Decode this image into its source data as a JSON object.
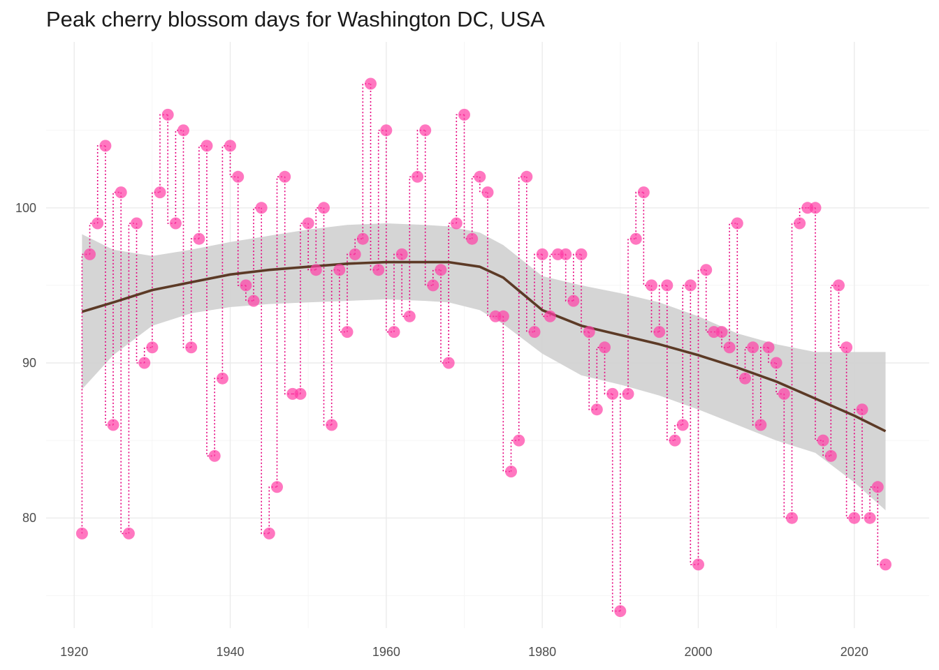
{
  "chart_data": {
    "type": "scatter",
    "title": "Peak cherry blossom days for Washington DC, USA",
    "xlabel": "",
    "ylabel": "",
    "xlim": [
      1916.2,
      1928.8
    ],
    "ylim": [
      72.9,
      110.7
    ],
    "x_ticks": [
      1920,
      1940,
      1960,
      1980,
      2000,
      2020
    ],
    "y_ticks": [
      80,
      90,
      100
    ],
    "grid": true,
    "colors": {
      "points": "#ff3da5",
      "segments": "#e6007e",
      "trend": "#5c3a26",
      "band": "#d3d3d3",
      "grid_major": "#ebebeb",
      "grid_minor": "#f5f5f5"
    },
    "series": [
      {
        "type": "points",
        "x": [
          1921,
          1922,
          1923,
          1924,
          1925,
          1926,
          1927,
          1928,
          1929,
          1930,
          1931,
          1932,
          1933,
          1934,
          1935,
          1936,
          1937,
          1938,
          1939,
          1940,
          1941,
          1942,
          1943,
          1944,
          1945,
          1946,
          1947,
          1948,
          1949,
          1950,
          1951,
          1952,
          1953,
          1954,
          1955,
          1956,
          1957,
          1958,
          1959,
          1960,
          1961,
          1962,
          1963,
          1964,
          1965,
          1966,
          1967,
          1968,
          1969,
          1970,
          1971,
          1972,
          1973,
          1974,
          1975,
          1976,
          1977,
          1978,
          1979,
          1980,
          1981,
          1982,
          1983,
          1984,
          1985,
          1986,
          1987,
          1988,
          1989,
          1990,
          1991,
          1992,
          1993,
          1994,
          1995,
          1996,
          1997,
          1998,
          1999,
          2000,
          2001,
          2002,
          2003,
          2004,
          2005,
          2006,
          2007,
          2008,
          2009,
          2010,
          2011,
          2012,
          2013,
          2014,
          2015,
          2016,
          2017,
          2018,
          2019,
          2020,
          2021,
          2022,
          2023,
          2024
        ],
        "y": [
          79,
          97,
          99,
          104,
          86,
          101,
          79,
          99,
          90,
          91,
          101,
          106,
          99,
          105,
          91,
          98,
          104,
          84,
          89,
          104,
          102,
          95,
          94,
          100,
          79,
          82,
          102,
          88,
          88,
          99,
          96,
          100,
          86,
          96,
          92,
          97,
          98,
          108,
          96,
          105,
          92,
          97,
          93,
          102,
          105,
          95,
          96,
          90,
          99,
          106,
          98,
          102,
          101,
          93,
          93,
          83,
          85,
          102,
          92,
          97,
          93,
          97,
          97,
          94,
          97,
          92,
          87,
          91,
          88,
          74,
          88,
          98,
          101,
          95,
          92,
          95,
          85,
          86,
          95,
          77,
          96,
          92,
          92,
          91,
          99,
          89,
          91,
          86,
          91,
          90,
          88,
          80,
          99,
          100,
          100,
          85,
          84,
          95,
          91,
          80,
          87,
          80,
          82,
          77
        ]
      },
      {
        "type": "smooth",
        "name": "",
        "x": [
          1921,
          1925,
          1930,
          1935,
          1940,
          1945,
          1950,
          1955,
          1960,
          1965,
          1968,
          1972,
          1975,
          1980,
          1985,
          1990,
          1995,
          2000,
          2005,
          2010,
          2015,
          2020,
          2024
        ],
        "y": [
          93.3,
          93.9,
          94.7,
          95.2,
          95.7,
          96.0,
          96.2,
          96.4,
          96.5,
          96.5,
          96.5,
          96.2,
          95.5,
          93.4,
          92.4,
          91.8,
          91.2,
          90.5,
          89.7,
          88.8,
          87.7,
          86.6,
          85.6
        ],
        "lower": [
          88.3,
          90.5,
          92.4,
          93.2,
          93.6,
          93.8,
          93.9,
          94.0,
          94.1,
          94.0,
          93.9,
          93.4,
          92.5,
          90.6,
          89.2,
          88.6,
          87.9,
          87.0,
          86.0,
          85.0,
          84.2,
          82.3,
          80.5
        ],
        "upper": [
          98.3,
          97.3,
          96.9,
          97.3,
          97.8,
          98.2,
          98.6,
          98.9,
          99.0,
          98.9,
          98.8,
          98.4,
          97.6,
          95.6,
          95.0,
          94.5,
          93.9,
          93.0,
          91.9,
          91.2,
          90.7,
          90.7,
          90.7
        ]
      }
    ]
  }
}
